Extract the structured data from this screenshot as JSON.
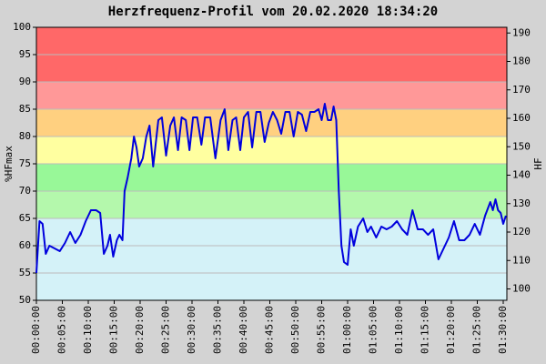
{
  "chart_data": {
    "type": "line",
    "title": "Herzfrequenz-Profil vom 20.02.2020 18:34:20",
    "ylabel": "%HFmax",
    "y2label": "HF",
    "xlim": [
      0,
      90.7
    ],
    "ylim": [
      50,
      100
    ],
    "y2lim": [
      96,
      192
    ],
    "yticks": [
      50,
      55,
      60,
      65,
      70,
      75,
      80,
      85,
      90,
      95,
      100
    ],
    "y2ticks": [
      100,
      110,
      120,
      130,
      140,
      150,
      160,
      170,
      180,
      190
    ],
    "xticks": [
      {
        "value": 0,
        "label": "00:00:00"
      },
      {
        "value": 5,
        "label": "00:05:00"
      },
      {
        "value": 10,
        "label": "00:10:00"
      },
      {
        "value": 15,
        "label": "00:15:00"
      },
      {
        "value": 20,
        "label": "00:20:00"
      },
      {
        "value": 25,
        "label": "00:25:00"
      },
      {
        "value": 30,
        "label": "00:30:00"
      },
      {
        "value": 35,
        "label": "00:35:00"
      },
      {
        "value": 40,
        "label": "00:40:00"
      },
      {
        "value": 45,
        "label": "00:45:00"
      },
      {
        "value": 50,
        "label": "00:50:00"
      },
      {
        "value": 55,
        "label": "00:55:00"
      },
      {
        "value": 60,
        "label": "01:00:00"
      },
      {
        "value": 65,
        "label": "01:05:00"
      },
      {
        "value": 70,
        "label": "01:10:00"
      },
      {
        "value": 75,
        "label": "01:15:00"
      },
      {
        "value": 80,
        "label": "01:20:00"
      },
      {
        "value": 85,
        "label": "01:25:00"
      },
      {
        "value": 90,
        "label": "01:30:00"
      }
    ],
    "grid": true,
    "zones": [
      {
        "from": 50,
        "to": 65,
        "color": "#d4f2f8"
      },
      {
        "from": 65,
        "to": 70,
        "color": "#b4f8ac"
      },
      {
        "from": 70,
        "to": 75,
        "color": "#98f898"
      },
      {
        "from": 75,
        "to": 80,
        "color": "#ffffa0"
      },
      {
        "from": 80,
        "to": 85,
        "color": "#ffd080"
      },
      {
        "from": 85,
        "to": 90,
        "color": "#ff9898"
      },
      {
        "from": 90,
        "to": 100,
        "color": "#ff6868"
      }
    ],
    "series": [
      {
        "color": "#0000dd",
        "x": [
          0,
          0.6,
          1.2,
          1.8,
          2.5,
          3.5,
          4.5,
          5.5,
          6.5,
          7.5,
          8.5,
          9.5,
          10.5,
          11.5,
          12.3,
          13,
          13.7,
          14.2,
          14.8,
          15.5,
          16,
          16.6,
          17,
          17.6,
          18.3,
          18.8,
          19.3,
          19.8,
          20.5,
          21.2,
          21.8,
          22.5,
          23.5,
          24.2,
          25,
          25.8,
          26.5,
          27.3,
          28,
          28.8,
          29.5,
          30.2,
          31,
          31.8,
          32.5,
          33.5,
          34.5,
          35.5,
          36.3,
          37,
          37.8,
          38.5,
          39.3,
          40,
          40.8,
          41.6,
          42.4,
          43.2,
          44,
          44.8,
          45.6,
          46.4,
          47.2,
          48,
          48.8,
          49.6,
          50.4,
          51.2,
          52,
          52.8,
          53.6,
          54.4,
          55,
          55.6,
          56.2,
          56.8,
          57.3,
          57.8,
          58.3,
          58.8,
          59.3,
          60,
          60.6,
          61.2,
          62,
          63,
          63.8,
          64.5,
          65.5,
          66.5,
          67.5,
          68.5,
          69.5,
          70.5,
          71.5,
          72.5,
          73.5,
          74.5,
          75.5,
          76.5,
          77.5,
          78.5,
          79.5,
          80.5,
          81.5,
          82.5,
          83.5,
          84.5,
          85.5,
          86.5,
          87.5,
          88,
          88.5,
          89,
          89.5,
          90,
          90.5
        ],
        "values": [
          55,
          64.5,
          64,
          58.5,
          60,
          59.5,
          59,
          60.5,
          62.5,
          60.5,
          62,
          64.5,
          66.5,
          66.5,
          66,
          58.5,
          60,
          62,
          58,
          61,
          62,
          61,
          70,
          72.5,
          76,
          80,
          78,
          74.5,
          76,
          80,
          82,
          74.5,
          83,
          83.5,
          76.5,
          82,
          83.5,
          77.5,
          83.5,
          83,
          77.5,
          83.5,
          83.5,
          78.5,
          83.5,
          83.5,
          76,
          83,
          85,
          77.5,
          83,
          83.5,
          77.5,
          83.5,
          84.5,
          78,
          84.5,
          84.5,
          79,
          82.5,
          84.5,
          83,
          80.5,
          84.5,
          84.5,
          80,
          84.5,
          84,
          81,
          84.5,
          84.5,
          85,
          83,
          86,
          83,
          83,
          85.5,
          83,
          70,
          60,
          57,
          56.5,
          63,
          60,
          63.5,
          65,
          62.5,
          63.5,
          61.5,
          63.5,
          63,
          63.5,
          64.5,
          63,
          62,
          66.5,
          63,
          63,
          62,
          63,
          57.5,
          59.5,
          61.5,
          64.5,
          61,
          61,
          62,
          64,
          62,
          65.5,
          68,
          66.5,
          68.5,
          66.5,
          66,
          64,
          65.5
        ]
      }
    ]
  }
}
